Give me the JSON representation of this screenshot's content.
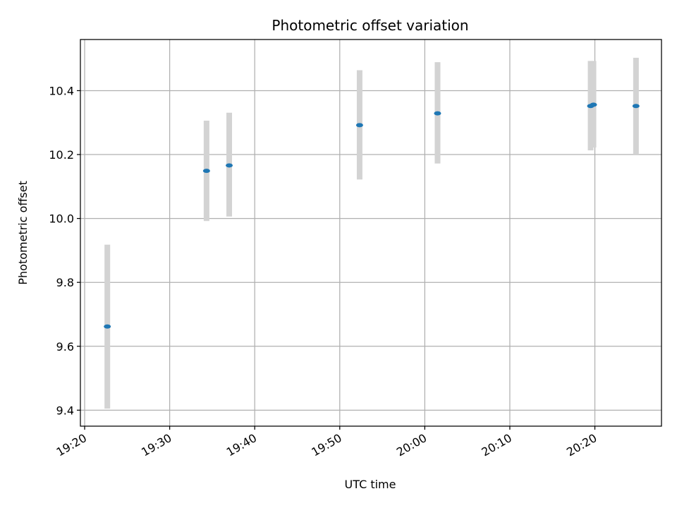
{
  "chart_data": {
    "type": "scatter",
    "title": "Photometric offset variation",
    "xlabel": "UTC time",
    "ylabel": "Photometric offset",
    "x_unit": "UTC time (HH:MM:SS)",
    "xlim": [
      "19:19:30",
      "20:27:50"
    ],
    "ylim": [
      9.35,
      10.56
    ],
    "xticks": [
      "19:20",
      "19:30",
      "19:40",
      "19:50",
      "20:00",
      "20:10",
      "20:20"
    ],
    "yticks": [
      "9.4",
      "9.6",
      "9.8",
      "10.0",
      "10.2",
      "10.4"
    ],
    "grid": true,
    "series": [
      {
        "x": [
          "19:22:40",
          "19:34:20",
          "19:37:00",
          "19:52:20",
          "20:01:30",
          "20:19:30",
          "20:19:50",
          "20:24:50"
        ],
        "y": [
          9.662,
          10.149,
          10.166,
          10.292,
          10.329,
          10.352,
          10.356,
          10.352
        ],
        "err_low": [
          9.405,
          9.992,
          10.006,
          10.122,
          10.172,
          10.213,
          10.222,
          10.2
        ],
        "err_high": [
          9.918,
          10.306,
          10.331,
          10.464,
          10.489,
          10.493,
          10.493,
          10.503
        ]
      }
    ],
    "colors": {
      "marker": "#1f77b4",
      "errorbar": "#d3d3d3",
      "grid": "#b0b0b0"
    }
  }
}
